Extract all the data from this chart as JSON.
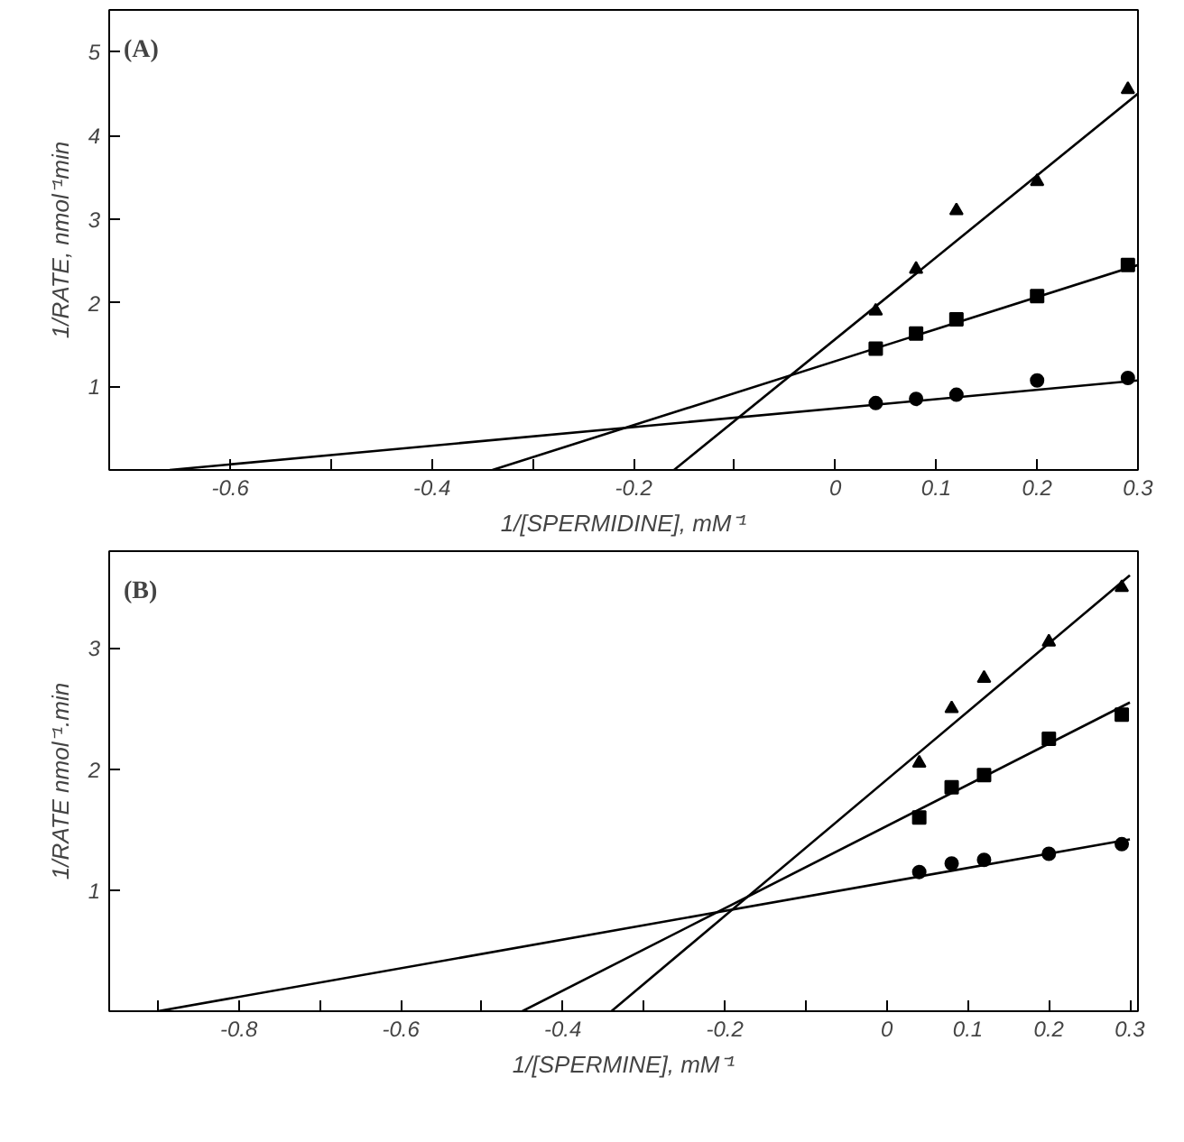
{
  "chart_data": [
    {
      "type": "scatter",
      "title": "(A)",
      "xlabel": "1/[SPERMIDINE], mM⁻¹",
      "ylabel": "1/RATE, nmol⁻¹min",
      "xlim": [
        -0.72,
        0.3
      ],
      "ylim": [
        0,
        5.5
      ],
      "xticks": [
        -0.6,
        {
          "value": -0.5,
          "label": null
        },
        -0.4,
        {
          "value": -0.3,
          "label": null
        },
        -0.2,
        {
          "value": -0.1,
          "label": null
        },
        0,
        0.1,
        0.2,
        0.3
      ],
      "yticks": [
        1,
        2,
        3,
        4,
        5
      ],
      "grid": false,
      "series": [
        {
          "color": "#000000",
          "marker": "circle",
          "x": [
            0.04,
            0.08,
            0.12,
            0.2,
            0.29
          ],
          "values": [
            0.8,
            0.85,
            0.9,
            1.07,
            1.1
          ]
        },
        {
          "color": "#000000",
          "marker": "square",
          "x": [
            0.04,
            0.08,
            0.12,
            0.2,
            0.29
          ],
          "values": [
            1.45,
            1.63,
            1.8,
            2.08,
            2.45
          ]
        },
        {
          "color": "#000000",
          "marker": "triangle",
          "x": [
            0.04,
            0.08,
            0.12,
            0.2,
            0.29
          ],
          "values": [
            1.9,
            2.4,
            3.1,
            3.45,
            4.55
          ]
        },
        {
          "type": "line",
          "color": "#000000",
          "marker": "none",
          "x": [
            -0.66,
            0.3
          ],
          "values": [
            0,
            1.07
          ]
        },
        {
          "type": "line",
          "color": "#000000",
          "marker": "none",
          "x": [
            -0.34,
            0.3
          ],
          "values": [
            0,
            2.45
          ]
        },
        {
          "type": "line",
          "color": "#000000",
          "marker": "none",
          "x": [
            -0.16,
            0.3
          ],
          "values": [
            0,
            4.5
          ]
        }
      ]
    },
    {
      "type": "scatter",
      "title": "(B)",
      "xlabel": "1/[SPERMINE], mM⁻¹",
      "ylabel": "1/RATE nmol⁻¹.min",
      "xlim": [
        -0.96,
        0.31
      ],
      "ylim": [
        0,
        3.8
      ],
      "xticks": [
        {
          "value": -0.9,
          "label": null
        },
        -0.8,
        {
          "value": -0.7,
          "label": null
        },
        -0.6,
        {
          "value": -0.5,
          "label": null
        },
        -0.4,
        {
          "value": -0.3,
          "label": null
        },
        -0.2,
        {
          "value": -0.1,
          "label": null
        },
        0,
        0.1,
        0.2,
        0.3
      ],
      "yticks": [
        1,
        2,
        3
      ],
      "grid": false,
      "series": [
        {
          "color": "#000000",
          "marker": "circle",
          "x": [
            0.04,
            0.08,
            0.12,
            0.2,
            0.29
          ],
          "values": [
            1.15,
            1.22,
            1.25,
            1.3,
            1.38
          ]
        },
        {
          "color": "#000000",
          "marker": "square",
          "x": [
            0.04,
            0.08,
            0.12,
            0.2,
            0.29
          ],
          "values": [
            1.6,
            1.85,
            1.95,
            2.25,
            2.45
          ]
        },
        {
          "color": "#000000",
          "marker": "triangle",
          "x": [
            0.04,
            0.08,
            0.12,
            0.2,
            0.29
          ],
          "values": [
            2.05,
            2.5,
            2.75,
            3.05,
            3.5
          ]
        },
        {
          "type": "line",
          "color": "#000000",
          "marker": "none",
          "x": [
            -0.9,
            0.3
          ],
          "values": [
            0,
            1.42
          ]
        },
        {
          "type": "line",
          "color": "#000000",
          "marker": "none",
          "x": [
            -0.45,
            0.3
          ],
          "values": [
            0,
            2.55
          ]
        },
        {
          "type": "line",
          "color": "#000000",
          "marker": "none",
          "x": [
            -0.34,
            0.3
          ],
          "values": [
            0,
            3.6
          ]
        }
      ]
    }
  ]
}
